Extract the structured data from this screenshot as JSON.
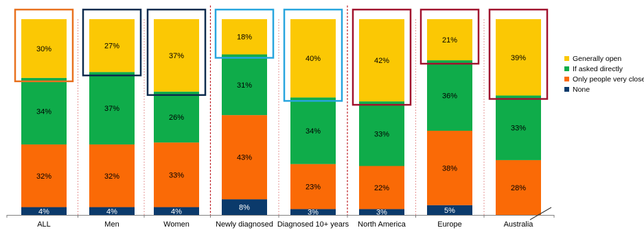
{
  "chart_data": {
    "type": "bar",
    "stacked": true,
    "percent": true,
    "categories": [
      "ALL",
      "Men",
      "Women",
      "Newly diagnosed",
      "Diagnosed 10+ years",
      "North America",
      "Europe",
      "Australia"
    ],
    "series": [
      {
        "name": "None",
        "color": "#0b3a6b",
        "values": [
          4,
          4,
          4,
          8,
          3,
          3,
          5,
          0
        ],
        "labels": [
          "4%",
          "4%",
          "4%",
          "8%",
          "3%",
          "3%",
          "5%",
          "0%"
        ]
      },
      {
        "name": "Only people very close",
        "color": "#fa6a06",
        "values": [
          32,
          32,
          33,
          43,
          23,
          22,
          38,
          28
        ],
        "labels": [
          "32%",
          "32%",
          "33%",
          "43%",
          "23%",
          "22%",
          "38%",
          "28%"
        ]
      },
      {
        "name": "If asked directly",
        "color": "#0fac4a",
        "values": [
          34,
          37,
          26,
          31,
          34,
          33,
          36,
          33
        ],
        "labels": [
          "34%",
          "37%",
          "26%",
          "31%",
          "34%",
          "33%",
          "36%",
          "33%"
        ]
      },
      {
        "name": "Generally open",
        "color": "#fbc804",
        "values": [
          30,
          27,
          37,
          18,
          40,
          42,
          21,
          39
        ],
        "labels": [
          "30%",
          "27%",
          "37%",
          "18%",
          "40%",
          "42%",
          "21%",
          "39%"
        ]
      }
    ],
    "legend_order": [
      "Generally open",
      "If asked directly",
      "Only people very close",
      "None"
    ],
    "legend_position": "right",
    "highlight_boxes": [
      {
        "category": "ALL",
        "series": "Generally open",
        "color": "#e8711f"
      },
      {
        "category": "Men",
        "series": "Generally open",
        "color": "#0d2b4e"
      },
      {
        "category": "Women",
        "series": "Generally open",
        "color": "#0d2b4e"
      },
      {
        "category": "Newly diagnosed",
        "series": "Generally open",
        "color": "#27a5de"
      },
      {
        "category": "Diagnosed 10+ years",
        "series": "Generally open",
        "color": "#27a5de"
      },
      {
        "category": "North America",
        "series": "Generally open",
        "color": "#a1122e"
      },
      {
        "category": "Europe",
        "series": "Generally open",
        "color": "#a1122e"
      },
      {
        "category": "Australia",
        "series": "Generally open",
        "color": "#a1122e"
      }
    ],
    "group_separators_after": [
      "Women",
      "Diagnosed 10+ years"
    ],
    "separator_color": "#c1272d",
    "ylim": [
      0,
      100
    ],
    "title": "",
    "xlabel": "",
    "ylabel": ""
  }
}
